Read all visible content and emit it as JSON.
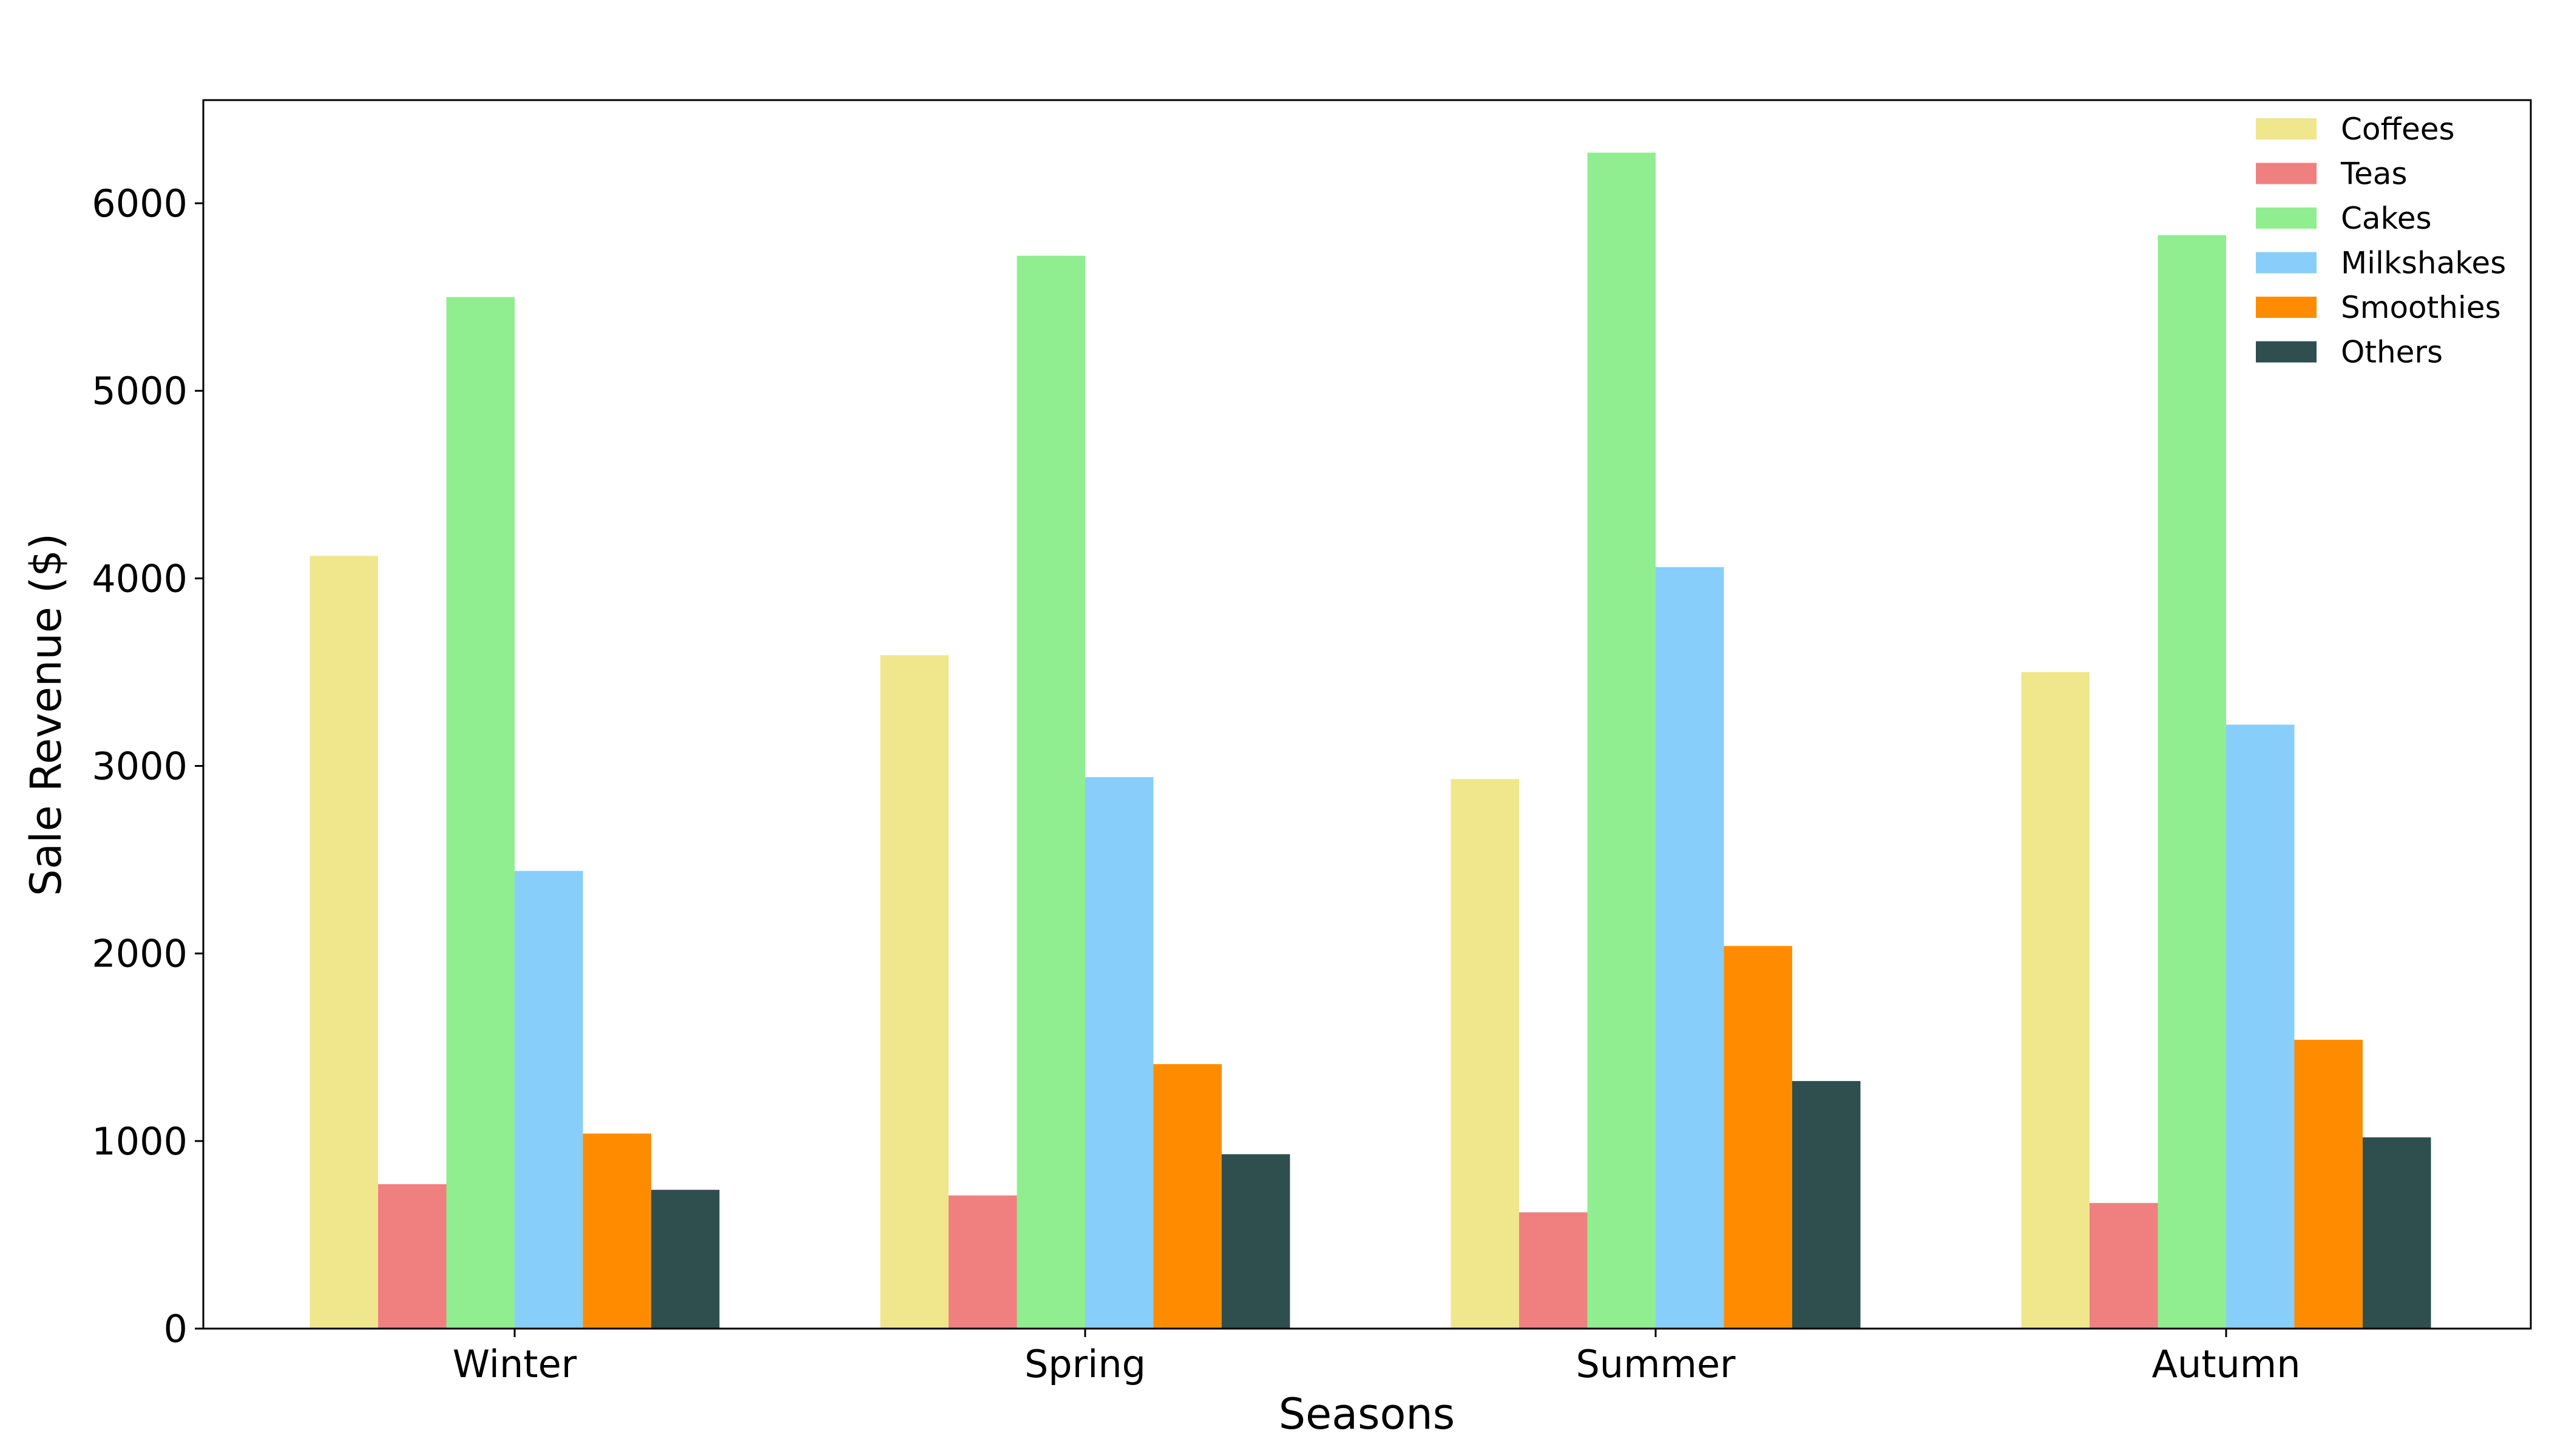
{
  "chart_data": {
    "type": "bar",
    "title": "",
    "xlabel": "Seasons",
    "ylabel": "Sale Revenue ($)",
    "categories": [
      "Winter",
      "Spring",
      "Summer",
      "Autumn"
    ],
    "ylim": [
      0,
      6550
    ],
    "yticks": [
      0,
      1000,
      2000,
      3000,
      4000,
      5000,
      6000
    ],
    "grid": false,
    "legend_position": "top-right",
    "series": [
      {
        "name": "Coffees",
        "color": "#f0e68c",
        "values": [
          4120,
          3590,
          2930,
          3500
        ]
      },
      {
        "name": "Teas",
        "color": "#f08080",
        "values": [
          770,
          710,
          620,
          670
        ]
      },
      {
        "name": "Cakes",
        "color": "#90ee90",
        "values": [
          5500,
          5720,
          6270,
          5830
        ]
      },
      {
        "name": "Milkshakes",
        "color": "#87cefa",
        "values": [
          2440,
          2940,
          4060,
          3220
        ]
      },
      {
        "name": "Smoothies",
        "color": "#ff8c00",
        "values": [
          1040,
          1410,
          2040,
          1540
        ]
      },
      {
        "name": "Others",
        "color": "#2f4f4f",
        "values": [
          740,
          930,
          1320,
          1020
        ]
      }
    ]
  }
}
